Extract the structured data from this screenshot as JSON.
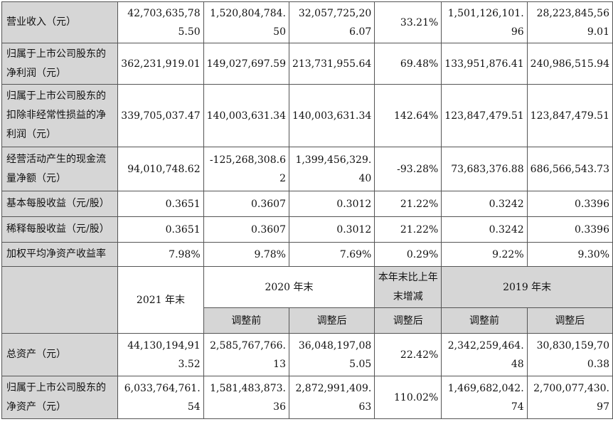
{
  "rows_top": [
    {
      "label": "营业收入（元）",
      "v": [
        "42,703,635,785.50",
        "1,520,804,784.50",
        "32,057,725,206.07",
        "33.21%",
        "1,501,126,101.96",
        "28,223,845,569.01"
      ]
    },
    {
      "label": "归属于上市公司股东的净利润（元）",
      "v": [
        "362,231,919.01",
        "149,027,697.59",
        "213,731,955.64",
        "69.48%",
        "133,951,876.41",
        "240,986,515.94"
      ]
    },
    {
      "label": "归属于上市公司股东的扣除非经常性损益的净利润（元）",
      "v": [
        "339,705,037.47",
        "140,003,631.34",
        "140,003,631.34",
        "142.64%",
        "123,847,479.51",
        "123,847,479.51"
      ]
    },
    {
      "label": "经营活动产生的现金流量净额（元）",
      "v": [
        "94,010,748.62",
        "-125,268,308.62",
        "1,399,456,329.40",
        "-93.28%",
        "73,683,376.88",
        "686,566,543.73"
      ]
    },
    {
      "label": "基本每股收益（元/股）",
      "v": [
        "0.3651",
        "0.3607",
        "0.3012",
        "21.22%",
        "0.3242",
        "0.3396"
      ]
    },
    {
      "label": "稀释每股收益（元/股）",
      "v": [
        "0.3651",
        "0.3607",
        "0.3012",
        "21.22%",
        "0.3242",
        "0.3396"
      ]
    },
    {
      "label": "加权平均净资产收益率",
      "v": [
        "7.98%",
        "9.78%",
        "7.69%",
        "0.29%",
        "9.22%",
        "9.30%"
      ]
    }
  ],
  "header": {
    "col_2021": "2021 年末",
    "col_2020": "2020 年末",
    "col_change": "本年末比上年末增减",
    "col_2019": "2019 年末",
    "before_adj": "调整前",
    "after_adj": "调整后"
  },
  "rows_bottom": [
    {
      "label": "总资产（元）",
      "v": [
        "44,130,194,913.52",
        "2,585,767,766.13",
        "36,048,197,085.05",
        "22.42%",
        "2,342,259,464.48",
        "30,830,159,700.38"
      ]
    },
    {
      "label": "归属于上市公司股东的净资产（元）",
      "v": [
        "6,033,764,761.54",
        "1,581,483,873.36",
        "2,872,991,409.63",
        "110.02%",
        "1,469,682,042.74",
        "2,700,077,430.97"
      ]
    }
  ]
}
